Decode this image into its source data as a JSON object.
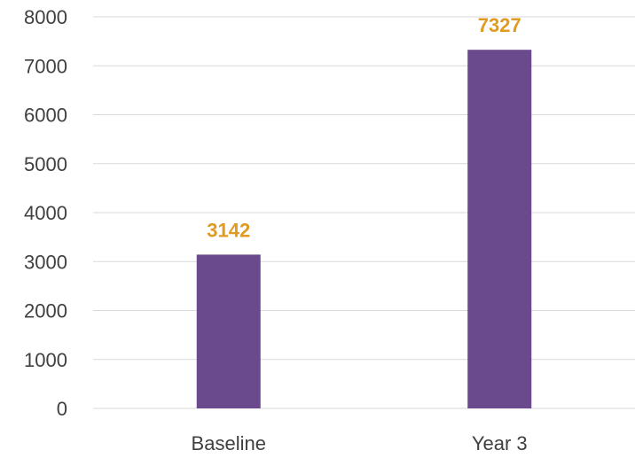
{
  "chart_data": {
    "type": "bar",
    "categories": [
      "Baseline",
      "Year 3"
    ],
    "values": [
      3142,
      7327
    ],
    "data_labels": [
      "3142",
      "7327"
    ],
    "title": "",
    "xlabel": "",
    "ylabel": "",
    "ylim": [
      0,
      8000
    ],
    "yticks": [
      "0",
      "1000",
      "2000",
      "3000",
      "4000",
      "5000",
      "6000",
      "7000",
      "8000"
    ],
    "grid": true,
    "legend": "none",
    "colors": {
      "bar": "#6a4a8c",
      "data_label": "#e09b20",
      "grid": "#d9d9d9",
      "tick_label": "#404040"
    }
  }
}
